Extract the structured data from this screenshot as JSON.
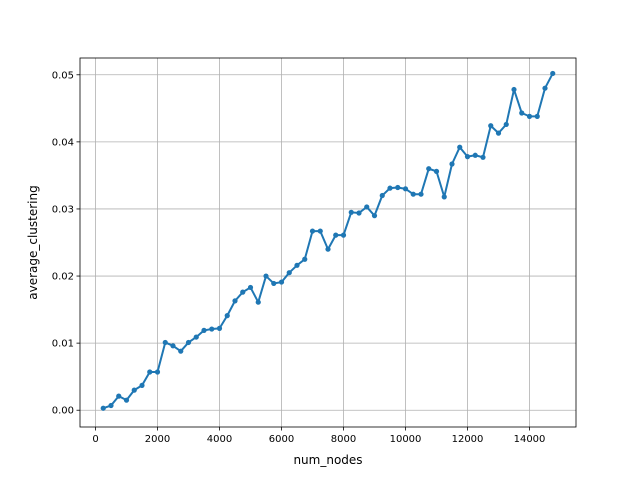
{
  "chart_data": {
    "type": "line",
    "title": "",
    "xlabel": "num_nodes",
    "ylabel": "average_clustering",
    "xlim": [
      -500,
      15500
    ],
    "ylim": [
      -0.0025,
      0.0525
    ],
    "xticks": [
      0,
      2000,
      4000,
      6000,
      8000,
      10000,
      12000,
      14000
    ],
    "xtick_labels": [
      "0",
      "2000",
      "4000",
      "6000",
      "8000",
      "10000",
      "12000",
      "14000"
    ],
    "yticks": [
      0.0,
      0.01,
      0.02,
      0.03,
      0.04,
      0.05
    ],
    "ytick_labels": [
      "0.00",
      "0.01",
      "0.02",
      "0.03",
      "0.04",
      "0.05"
    ],
    "grid": true,
    "line_color": "#1f77b4",
    "grid_color": "#b0b0b0",
    "series": [
      {
        "x": [
          250,
          500,
          750,
          1000,
          1250,
          1500,
          1750,
          2000,
          2250,
          2500,
          2750,
          3000,
          3250,
          3500,
          3750,
          4000,
          4250,
          4500,
          4750,
          5000,
          5250,
          5500,
          5750,
          6000,
          6250,
          6500,
          6750,
          7000,
          7250,
          7500,
          7750,
          8000,
          8250,
          8500,
          8750,
          9000,
          9250,
          9500,
          9750,
          10000,
          10250,
          10500,
          10750,
          11000,
          11250,
          11500,
          11750,
          12000,
          12250,
          12500,
          12750,
          13000,
          13250,
          13500,
          13750,
          14000,
          14250,
          14500,
          14750
        ],
        "y": [
          0.0003,
          0.0007,
          0.0021,
          0.0015,
          0.003,
          0.0037,
          0.0057,
          0.0057,
          0.0101,
          0.0096,
          0.0088,
          0.0101,
          0.0109,
          0.0119,
          0.0121,
          0.0122,
          0.0141,
          0.0163,
          0.0176,
          0.0183,
          0.0161,
          0.02,
          0.0189,
          0.0191,
          0.0205,
          0.0216,
          0.0225,
          0.0267,
          0.0267,
          0.024,
          0.0261,
          0.0261,
          0.0295,
          0.0294,
          0.0303,
          0.029,
          0.032,
          0.0331,
          0.0332,
          0.033,
          0.0322,
          0.0322,
          0.036,
          0.0356,
          0.0318,
          0.0367,
          0.0392,
          0.0378,
          0.038,
          0.0377,
          0.0424,
          0.0413,
          0.0426,
          0.0478,
          0.0443,
          0.0438,
          0.0438,
          0.048,
          0.0502
        ]
      }
    ]
  }
}
